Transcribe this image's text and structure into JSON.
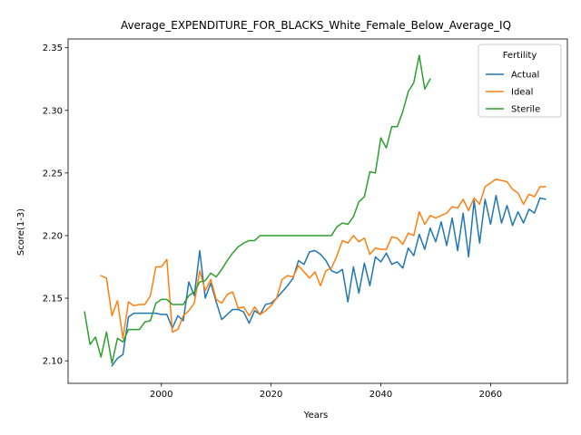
{
  "chart_data": {
    "type": "line",
    "title": "Average_EXPENDITURE_FOR_BLACKS_White_Female_Below_Average_IQ",
    "xlabel": "Years",
    "ylabel": "Score(1-3)",
    "xlim": [
      1983,
      2074
    ],
    "ylim": [
      2.082,
      2.357
    ],
    "xticks": [
      2000,
      2020,
      2040,
      2060
    ],
    "yticks": [
      2.1,
      2.15,
      2.2,
      2.25,
      2.3,
      2.35
    ],
    "ytick_labels": [
      "2.10",
      "2.15",
      "2.20",
      "2.25",
      "2.30",
      "2.35"
    ],
    "legend": {
      "title": "Fertility",
      "position": "top-right"
    },
    "grid": false,
    "series": [
      {
        "name": "Actual",
        "color": "#1f77b4",
        "x": [
          1991,
          1992,
          1993,
          1994,
          1995,
          1996,
          1997,
          1998,
          1999,
          2000,
          2001,
          2002,
          2003,
          2004,
          2005,
          2006,
          2007,
          2008,
          2009,
          2010,
          2011,
          2012,
          2013,
          2014,
          2015,
          2016,
          2017,
          2018,
          2019,
          2020,
          2021,
          2022,
          2023,
          2024,
          2025,
          2026,
          2027,
          2028,
          2029,
          2030,
          2031,
          2032,
          2033,
          2034,
          2035,
          2036,
          2037,
          2038,
          2039,
          2040,
          2041,
          2042,
          2043,
          2044,
          2045,
          2046,
          2047,
          2048,
          2049,
          2050,
          2051,
          2052,
          2053,
          2054,
          2055,
          2056,
          2057,
          2058,
          2059,
          2060,
          2061,
          2062,
          2063,
          2064,
          2065,
          2066,
          2067,
          2068,
          2069,
          2070
        ],
        "y": [
          2.096,
          2.102,
          2.105,
          2.135,
          2.138,
          2.138,
          2.138,
          2.138,
          2.138,
          2.137,
          2.137,
          2.126,
          2.136,
          2.132,
          2.163,
          2.152,
          2.188,
          2.15,
          2.162,
          2.147,
          2.133,
          2.137,
          2.141,
          2.141,
          2.139,
          2.13,
          2.14,
          2.137,
          2.145,
          2.146,
          2.15,
          2.155,
          2.16,
          2.166,
          2.18,
          2.177,
          2.187,
          2.188,
          2.185,
          2.18,
          2.172,
          2.17,
          2.173,
          2.147,
          2.175,
          2.154,
          2.178,
          2.16,
          2.183,
          2.179,
          2.186,
          2.177,
          2.179,
          2.174,
          2.19,
          2.184,
          2.201,
          2.189,
          2.206,
          2.195,
          2.211,
          2.192,
          2.214,
          2.188,
          2.218,
          2.183,
          2.228,
          2.194,
          2.229,
          2.209,
          2.232,
          2.21,
          2.224,
          2.208,
          2.219,
          2.21,
          2.221,
          2.218,
          2.23,
          2.229
        ]
      },
      {
        "name": "Ideal",
        "color": "#ff7f0e",
        "x": [
          1989,
          1990,
          1991,
          1992,
          1993,
          1994,
          1995,
          1996,
          1997,
          1998,
          1999,
          2000,
          2001,
          2002,
          2003,
          2004,
          2005,
          2006,
          2007,
          2008,
          2009,
          2010,
          2011,
          2012,
          2013,
          2014,
          2015,
          2016,
          2017,
          2018,
          2019,
          2020,
          2021,
          2022,
          2023,
          2024,
          2025,
          2026,
          2027,
          2028,
          2029,
          2030,
          2031,
          2032,
          2033,
          2034,
          2035,
          2036,
          2037,
          2038,
          2039,
          2040,
          2041,
          2042,
          2043,
          2044,
          2045,
          2046,
          2047,
          2048,
          2049,
          2050,
          2051,
          2052,
          2053,
          2054,
          2055,
          2056,
          2057,
          2058,
          2059,
          2060,
          2061,
          2062,
          2063,
          2064,
          2065,
          2066,
          2067,
          2068,
          2069,
          2070
        ],
        "y": [
          2.168,
          2.166,
          2.136,
          2.148,
          2.118,
          2.147,
          2.144,
          2.145,
          2.145,
          2.152,
          2.175,
          2.175,
          2.181,
          2.123,
          2.125,
          2.136,
          2.14,
          2.146,
          2.172,
          2.156,
          2.165,
          2.149,
          2.146,
          2.153,
          2.155,
          2.142,
          2.143,
          2.136,
          2.143,
          2.137,
          2.14,
          2.144,
          2.15,
          2.165,
          2.168,
          2.167,
          2.176,
          2.171,
          2.166,
          2.171,
          2.16,
          2.172,
          2.174,
          2.184,
          2.196,
          2.194,
          2.2,
          2.195,
          2.198,
          2.185,
          2.19,
          2.189,
          2.189,
          2.199,
          2.198,
          2.193,
          2.202,
          2.2,
          2.219,
          2.209,
          2.216,
          2.214,
          2.216,
          2.218,
          2.223,
          2.222,
          2.229,
          2.22,
          2.23,
          2.225,
          2.239,
          2.242,
          2.245,
          2.244,
          2.243,
          2.237,
          2.234,
          2.225,
          2.233,
          2.231,
          2.239,
          2.239
        ]
      },
      {
        "name": "Sterile",
        "color": "#2ca02c",
        "x": [
          1986,
          1987,
          1988,
          1989,
          1990,
          1991,
          1992,
          1993,
          1994,
          1995,
          1996,
          1997,
          1998,
          1999,
          2000,
          2001,
          2002,
          2003,
          2004,
          2005,
          2006,
          2007,
          2008,
          2009,
          2010,
          2011,
          2012,
          2013,
          2014,
          2015,
          2016,
          2017,
          2018,
          2019,
          2020,
          2021,
          2022,
          2023,
          2024,
          2025,
          2026,
          2027,
          2028,
          2029,
          2030,
          2031,
          2032,
          2033,
          2034,
          2035,
          2036,
          2037,
          2038,
          2039,
          2040,
          2041,
          2042,
          2043,
          2044,
          2045,
          2046,
          2047,
          2048,
          2049
        ],
        "y": [
          2.139,
          2.113,
          2.119,
          2.103,
          2.123,
          2.098,
          2.118,
          2.115,
          2.125,
          2.125,
          2.125,
          2.131,
          2.132,
          2.146,
          2.149,
          2.149,
          2.145,
          2.145,
          2.145,
          2.152,
          2.155,
          2.163,
          2.164,
          2.17,
          2.167,
          2.173,
          2.18,
          2.186,
          2.191,
          2.194,
          2.196,
          2.196,
          2.2,
          2.2,
          2.2,
          2.2,
          2.2,
          2.2,
          2.2,
          2.2,
          2.2,
          2.2,
          2.2,
          2.2,
          2.2,
          2.2,
          2.207,
          2.21,
          2.209,
          2.215,
          2.227,
          2.231,
          2.251,
          2.25,
          2.278,
          2.27,
          2.287,
          2.287,
          2.299,
          2.315,
          2.322,
          2.344,
          2.317,
          2.325
        ]
      }
    ]
  }
}
